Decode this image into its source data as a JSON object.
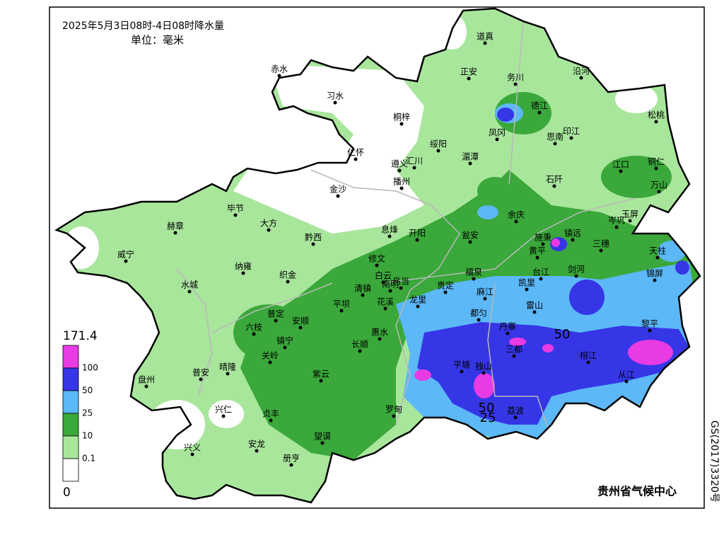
{
  "header": {
    "title": "2025年5月3日08时-4日08时降水量",
    "unit": "单位：毫米"
  },
  "legend": {
    "top": 171.4,
    "bands": [
      {
        "color": "#e83be3",
        "lower": 100
      },
      {
        "color": "#3636e6",
        "lower": 50
      },
      {
        "color": "#5cb8f7",
        "lower": 25
      },
      {
        "color": "#3aa83a",
        "lower": 10
      },
      {
        "color": "#a8e69c",
        "lower": 0.1
      },
      {
        "color": "#ffffff",
        "lower": 0
      }
    ]
  },
  "contour_labels": [
    50,
    50,
    25
  ],
  "stations": [
    "道真",
    "正安",
    "务川",
    "沿河",
    "赤水",
    "习水",
    "桐梓",
    "德江",
    "松桃",
    "绥阳",
    "凤冈",
    "思南",
    "印江",
    "湄潭",
    "仁怀",
    "汇川",
    "遵义",
    "播州",
    "江口",
    "铜仁",
    "石阡",
    "金沙",
    "万山",
    "毕节",
    "赫章",
    "大方",
    "黔西",
    "息烽",
    "开阳",
    "余庆",
    "岑巩",
    "玉屏",
    "瓮安",
    "施秉",
    "镇远",
    "三穗",
    "天柱",
    "威宁",
    "黄平",
    "纳雍",
    "织金",
    "修文",
    "白云",
    "乌当",
    "福泉",
    "台江",
    "剑河",
    "锦屏",
    "水城",
    "清镇",
    "南明",
    "贵定",
    "凯里",
    "平坝",
    "花溪",
    "龙里",
    "麻江",
    "雷山",
    "都匀",
    "六枝",
    "普定",
    "安顺",
    "镇宁",
    "关岭",
    "惠水",
    "长顺",
    "丹寨",
    "黎平",
    "三都",
    "榕江",
    "紫云",
    "平塘",
    "独山",
    "从江",
    "盘州",
    "普安",
    "晴隆",
    "兴仁",
    "贞丰",
    "罗甸",
    "荔波",
    "望谟",
    "兴义",
    "安龙",
    "册亨"
  ],
  "footer": "贵州省气候中心",
  "side_note": "GS(2017)3320号"
}
